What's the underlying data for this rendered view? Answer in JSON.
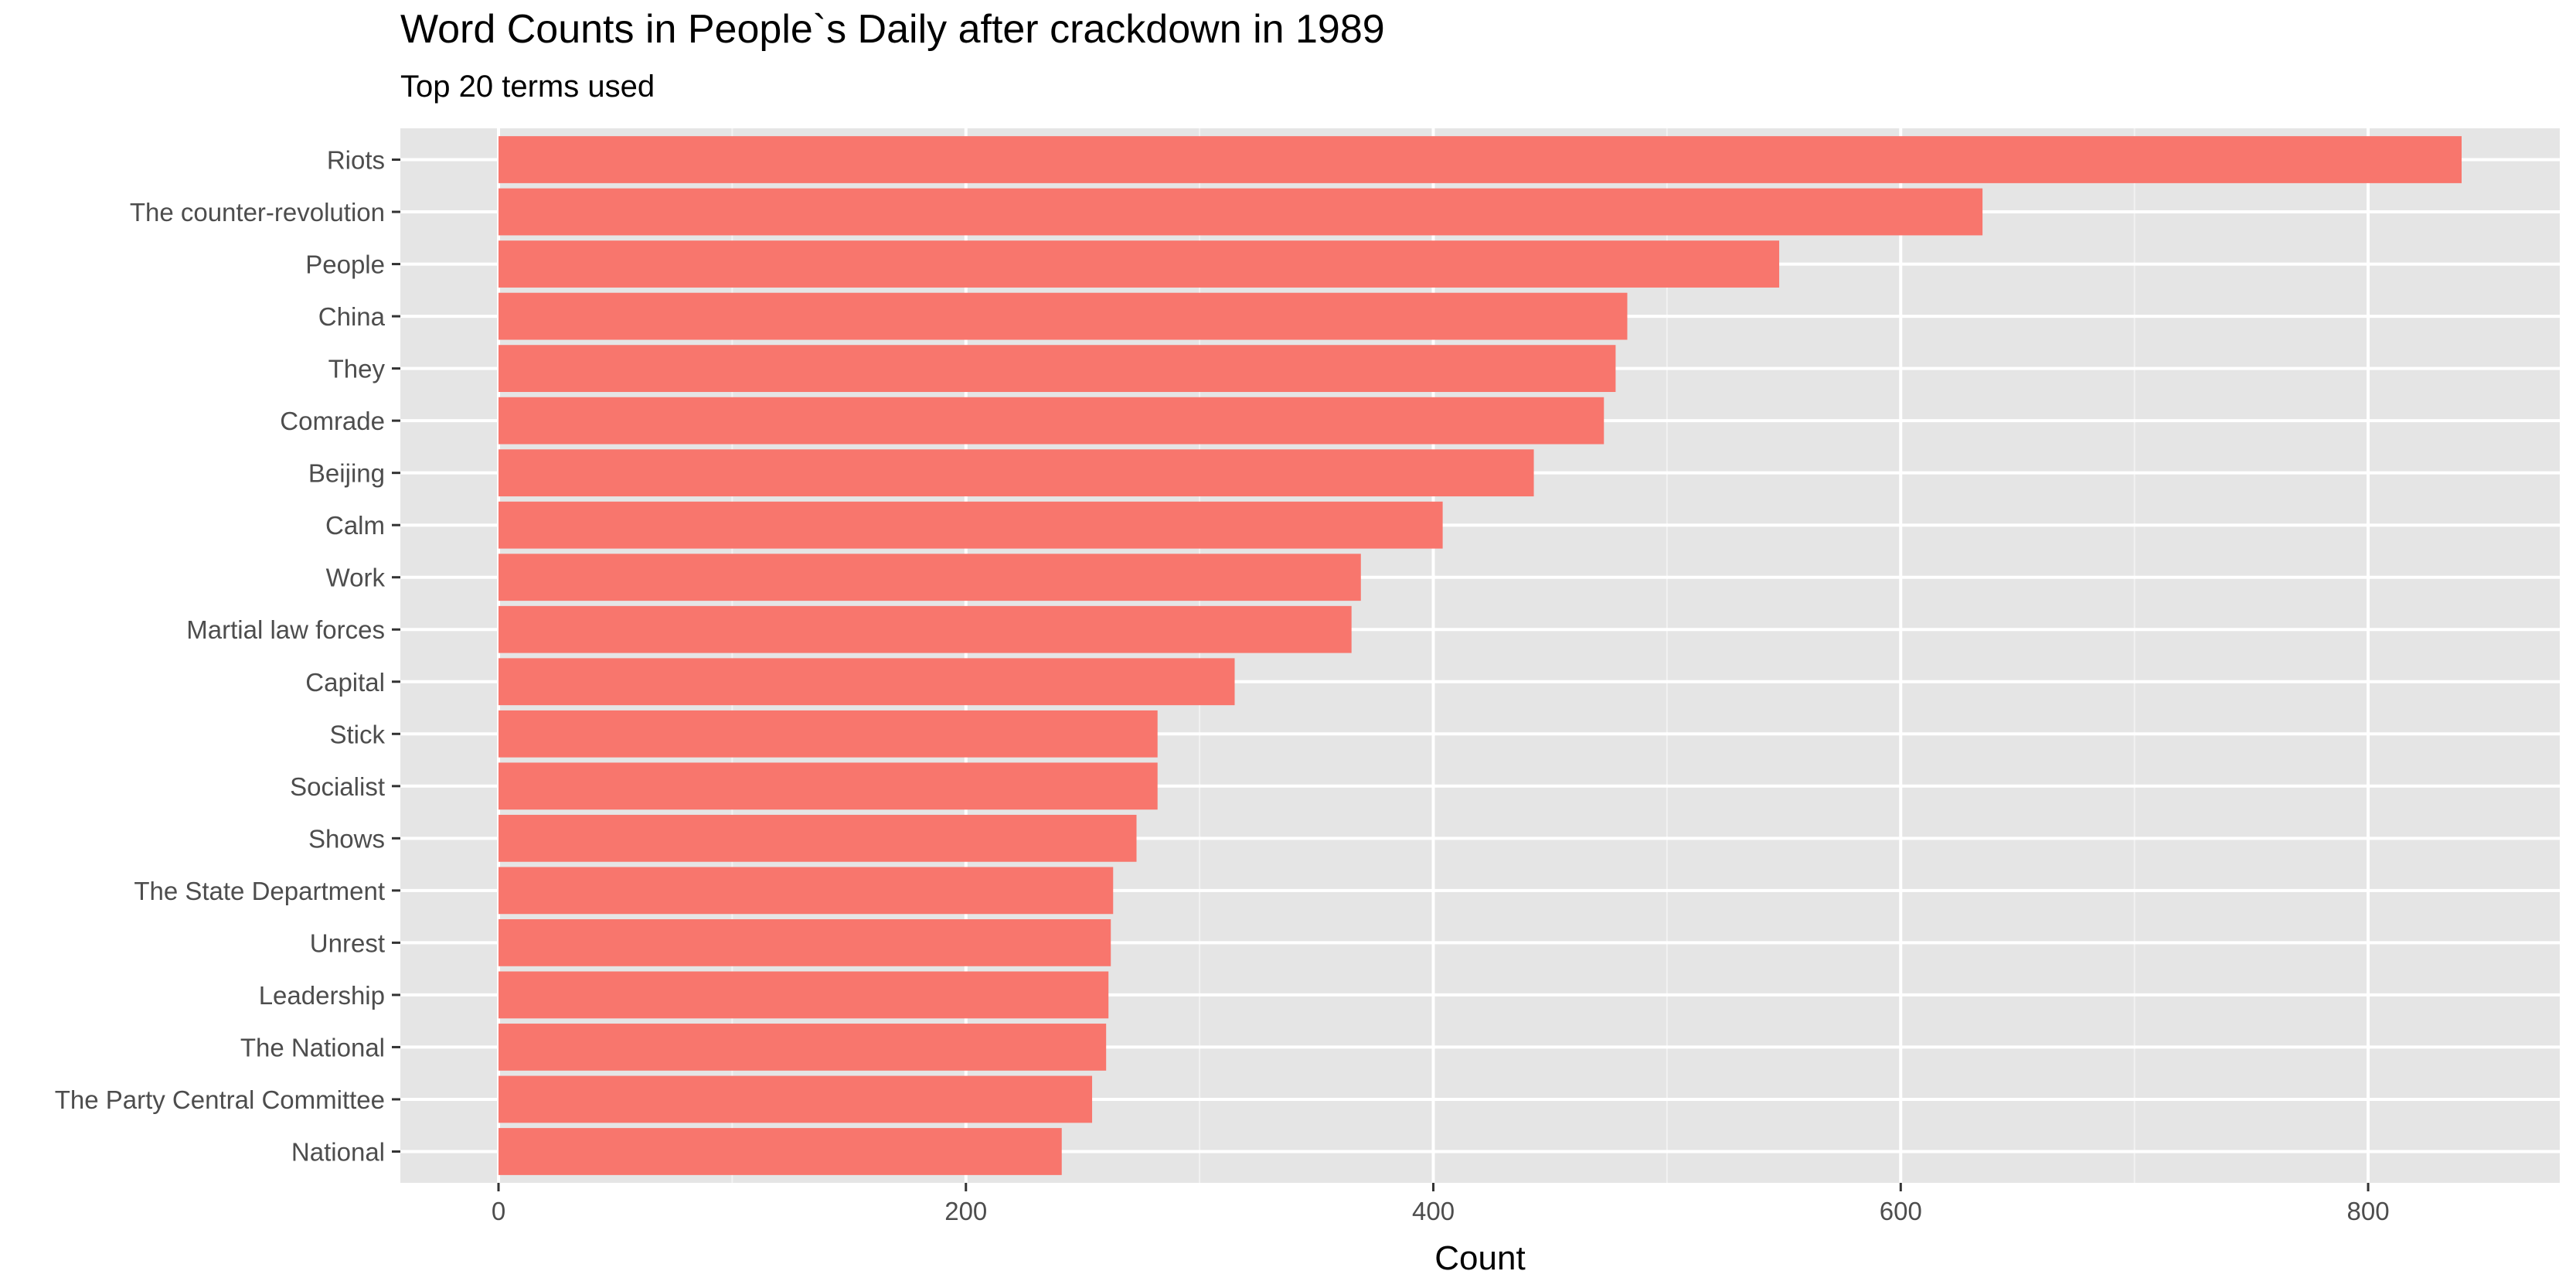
{
  "colors": {
    "bar": "#f8766d",
    "panel": "#e5e5e5",
    "grid_major": "#ffffff",
    "grid_minor": "#f2f2f2",
    "tick": "#333333",
    "tick_text": "#4d4d4d"
  },
  "chart_data": {
    "type": "bar",
    "orientation": "horizontal",
    "title": "Word Counts in People`s Daily after crackdown in 1989",
    "subtitle": "Top 20 terms used",
    "xlabel": "Count",
    "ylabel": "",
    "xlim": [
      -42,
      882
    ],
    "x_ticks": [
      0,
      200,
      400,
      600,
      800
    ],
    "grid": true,
    "legend": "none",
    "categories": [
      "Riots",
      "The counter-revolution",
      "People",
      "China",
      "They",
      "Comrade",
      "Beijing",
      "Calm",
      "Work",
      "Martial law forces",
      "Capital",
      "Stick",
      "Socialist",
      "Shows",
      "The State Department",
      "Unrest",
      "Leadership",
      "The National",
      "The Party Central Committee",
      "National"
    ],
    "values": [
      840,
      635,
      548,
      483,
      478,
      473,
      443,
      404,
      369,
      365,
      315,
      282,
      282,
      273,
      263,
      262,
      261,
      260,
      254,
      241
    ]
  }
}
